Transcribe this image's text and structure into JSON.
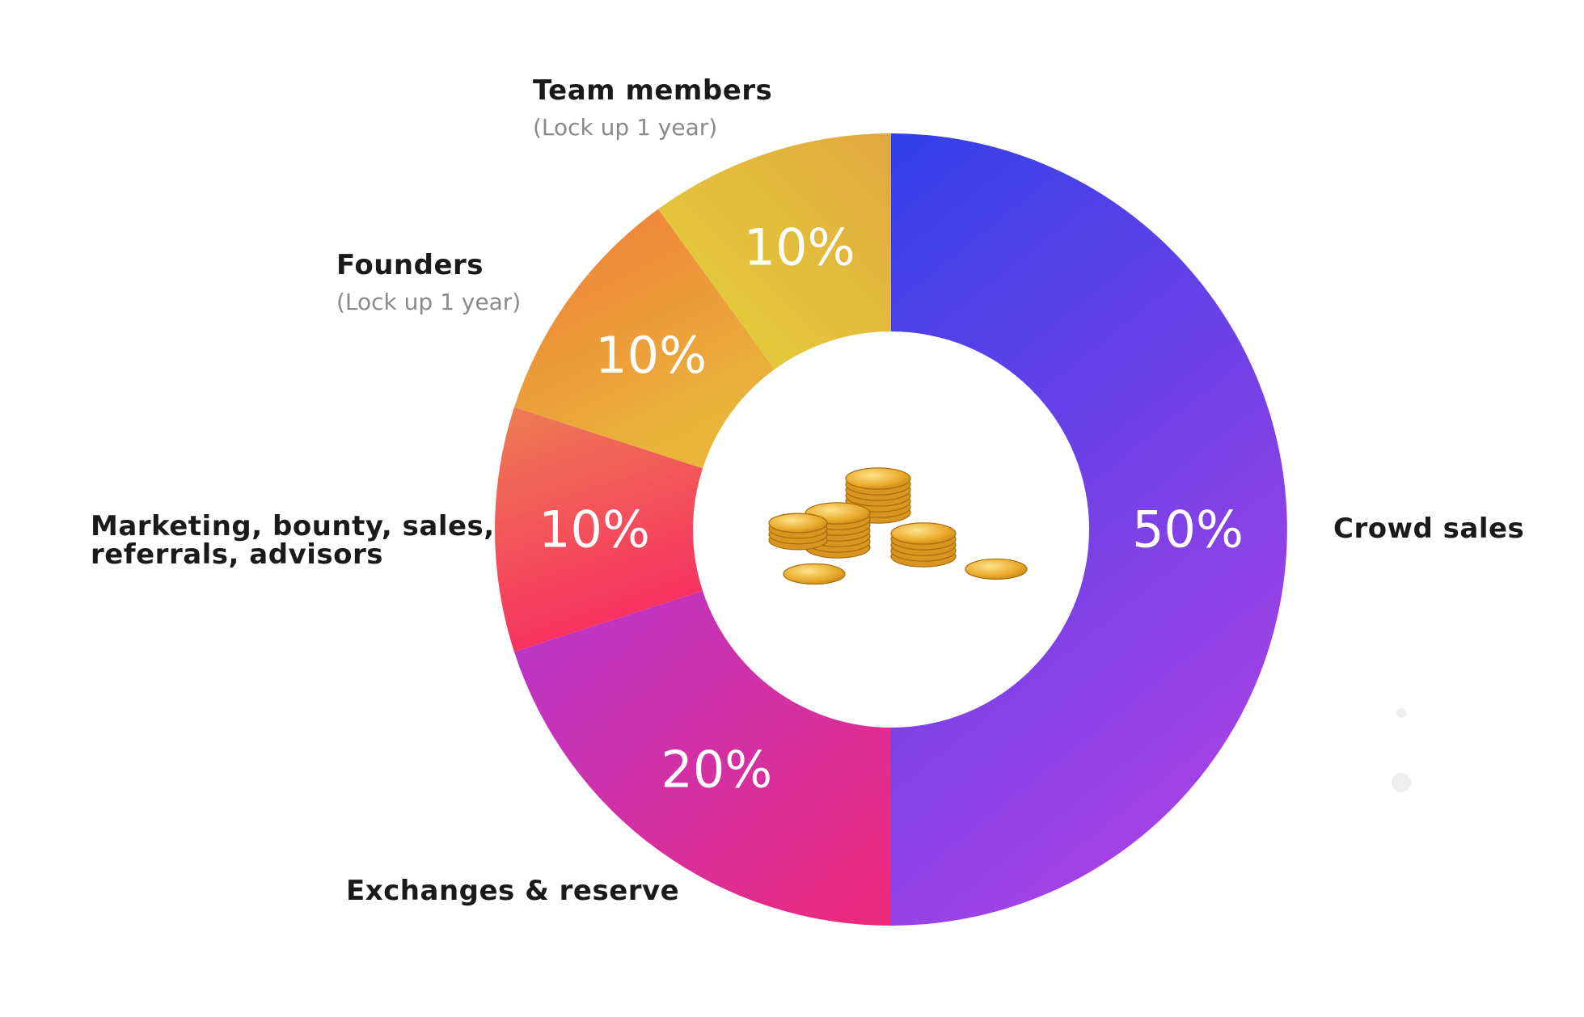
{
  "chart_data": {
    "type": "pie",
    "title": "",
    "slices": [
      {
        "label": "Crowd sales",
        "value": 50,
        "display": "50%",
        "note": "",
        "colors": [
          "#3240e8",
          "#a542e6"
        ]
      },
      {
        "label": "Exchanges & reserve",
        "value": 20,
        "display": "20%",
        "note": "",
        "colors": [
          "#b636cd",
          "#ee2a7b"
        ]
      },
      {
        "label": "Marketing, bounty, sales, referrals, advisors",
        "value": 10,
        "display": "10%",
        "note": "",
        "colors": [
          "#ee7d52",
          "#f82f62"
        ]
      },
      {
        "label": "Founders",
        "value": 10,
        "display": "10%",
        "note": "(Lock up 1 year)",
        "colors": [
          "#f07a3a",
          "#e9b63a"
        ]
      },
      {
        "label": "Team members",
        "value": 10,
        "display": "10%",
        "note": "(Lock up 1 year)",
        "colors": [
          "#e6d43a",
          "#e0a83e"
        ]
      }
    ]
  },
  "labels": {
    "crowd": "Crowd sales",
    "exchanges": "Exchanges & reserve",
    "marketing_line1": "Marketing, bounty, sales,",
    "marketing_line2": "referrals, advisors",
    "founders": "Founders",
    "founders_note": "(Lock up 1 year)",
    "team": "Team members",
    "team_note": "(Lock up 1 year)"
  },
  "center_icon": "coins-stack-icon"
}
